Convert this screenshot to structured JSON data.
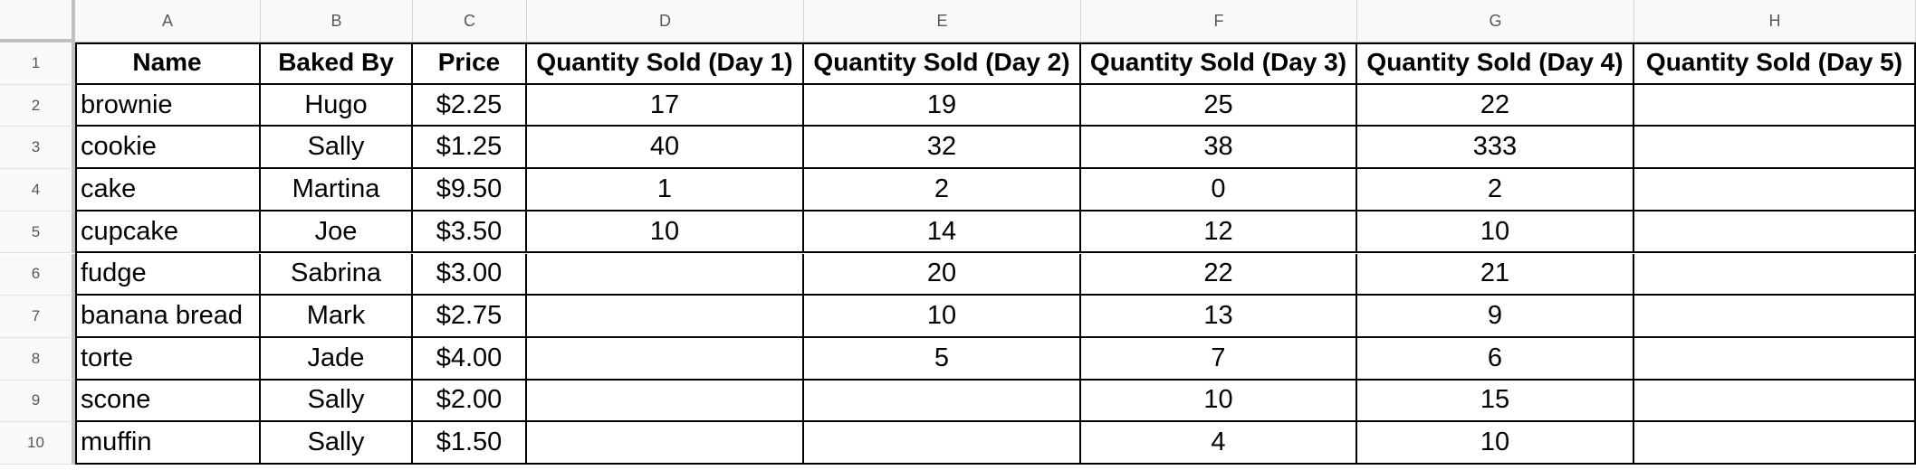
{
  "columns": [
    "A",
    "B",
    "C",
    "D",
    "E",
    "F",
    "G",
    "H"
  ],
  "rows": [
    {
      "num": "1",
      "cells": [
        "Name",
        "Baked By",
        "Price",
        "Quantity Sold (Day 1)",
        "Quantity Sold (Day 2)",
        "Quantity Sold (Day 3)",
        "Quantity Sold (Day 4)",
        "Quantity Sold (Day 5)"
      ]
    },
    {
      "num": "2",
      "cells": [
        "brownie",
        "Hugo",
        "$2.25",
        "17",
        "19",
        "25",
        "22",
        ""
      ]
    },
    {
      "num": "3",
      "cells": [
        "cookie",
        "Sally",
        "$1.25",
        "40",
        "32",
        "38",
        "333",
        ""
      ]
    },
    {
      "num": "4",
      "cells": [
        "cake",
        "Martina",
        "$9.50",
        "1",
        "2",
        "0",
        "2",
        ""
      ]
    },
    {
      "num": "5",
      "cells": [
        "cupcake",
        "Joe",
        "$3.50",
        "10",
        "14",
        "12",
        "10",
        ""
      ]
    },
    {
      "num": "6",
      "cells": [
        "fudge",
        "Sabrina",
        "$3.00",
        "",
        "20",
        "22",
        "21",
        ""
      ]
    },
    {
      "num": "7",
      "cells": [
        "banana bread",
        "Mark",
        "$2.75",
        "",
        "10",
        "13",
        "9",
        ""
      ]
    },
    {
      "num": "8",
      "cells": [
        "torte",
        "Jade",
        "$4.00",
        "",
        "5",
        "7",
        "6",
        ""
      ]
    },
    {
      "num": "9",
      "cells": [
        "scone",
        "Sally",
        "$2.00",
        "",
        "",
        "10",
        "15",
        ""
      ]
    },
    {
      "num": "10",
      "cells": [
        "muffin",
        "Sally",
        "$1.50",
        "",
        "",
        "4",
        "10",
        ""
      ]
    }
  ]
}
